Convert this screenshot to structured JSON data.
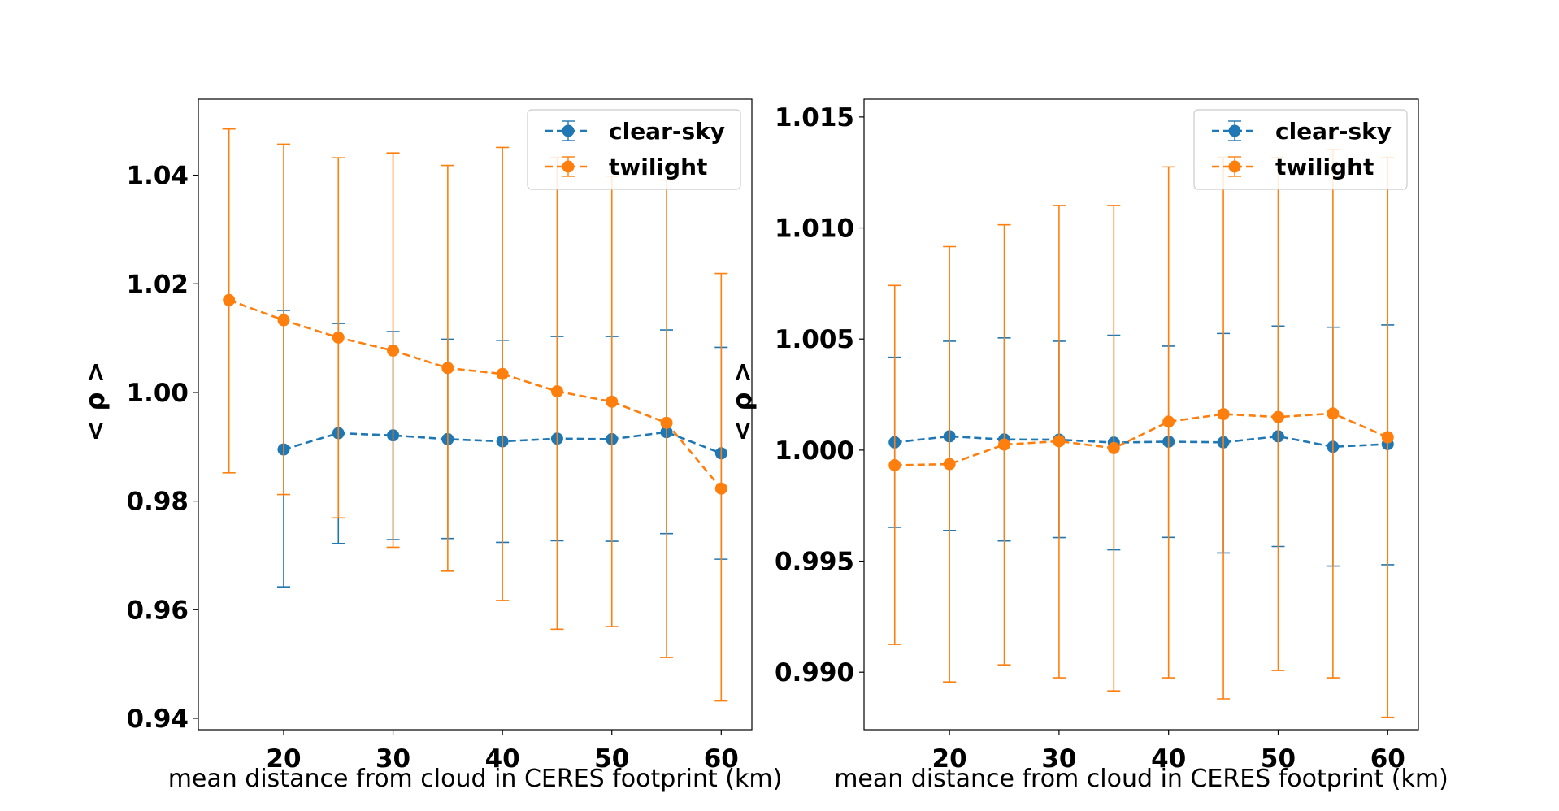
{
  "colors": {
    "clear_sky": "#1f77b4",
    "twilight": "#ff7f0e",
    "frame": "#000000",
    "background": "#ffffff"
  },
  "chart_data": [
    {
      "type": "line",
      "error_bars": true,
      "title": "",
      "xlabel": "mean distance from cloud in CERES footprint (km)",
      "ylabel": "< ρ >",
      "xlim": [
        12.2,
        62.8
      ],
      "ylim": [
        0.9379,
        1.054
      ],
      "xticks": [
        20,
        30,
        40,
        50,
        60
      ],
      "xtick_labels": [
        "20",
        "30",
        "40",
        "50",
        "60"
      ],
      "yticks": [
        0.94,
        0.96,
        0.98,
        1.0,
        1.02,
        1.04
      ],
      "ytick_labels": [
        "0.94",
        "0.96",
        "0.98",
        "1.00",
        "1.02",
        "1.04"
      ],
      "grid": false,
      "legend_position": "upper right",
      "series": [
        {
          "name": "clear-sky",
          "color": "#1f77b4",
          "linestyle": "dashed",
          "marker": "circle",
          "x": [
            20,
            25,
            30,
            35,
            40,
            45,
            50,
            55,
            60
          ],
          "y": [
            0.9895,
            0.9925,
            0.9921,
            0.9914,
            0.991,
            0.9915,
            0.9914,
            0.9927,
            0.9888
          ],
          "err_low": [
            0.9642,
            0.9722,
            0.9729,
            0.9731,
            0.9724,
            0.9727,
            0.9726,
            0.974,
            0.9693
          ],
          "err_high": [
            1.0151,
            1.0127,
            1.0112,
            1.0098,
            1.0096,
            1.0103,
            1.0103,
            1.0115,
            1.0083
          ]
        },
        {
          "name": "twilight",
          "color": "#ff7f0e",
          "linestyle": "dashed",
          "marker": "circle",
          "x": [
            15,
            20,
            25,
            30,
            35,
            40,
            45,
            50,
            55,
            60
          ],
          "y": [
            1.017,
            1.0133,
            1.0101,
            1.0077,
            1.0045,
            1.0034,
            1.0002,
            0.9983,
            0.9944,
            0.9823
          ],
          "err_low": [
            0.9852,
            0.9812,
            0.9769,
            0.9715,
            0.9671,
            0.9617,
            0.9564,
            0.9569,
            0.9512,
            0.9432
          ],
          "err_high": [
            1.0485,
            1.0457,
            1.0432,
            1.0441,
            1.0418,
            1.0451,
            1.0433,
            1.0398,
            1.0391,
            1.0219
          ]
        }
      ]
    },
    {
      "type": "line",
      "error_bars": true,
      "title": "",
      "xlabel": "mean distance from cloud in CERES footprint (km)",
      "ylabel": "< ρ >",
      "xlim": [
        12.2,
        62.8
      ],
      "ylim": [
        0.98741,
        1.0158
      ],
      "xticks": [
        20,
        30,
        40,
        50,
        60
      ],
      "xtick_labels": [
        "20",
        "30",
        "40",
        "50",
        "60"
      ],
      "yticks": [
        0.99,
        0.995,
        1.0,
        1.005,
        1.01,
        1.015
      ],
      "ytick_labels": [
        "0.990",
        "0.995",
        "1.000",
        "1.005",
        "1.010",
        "1.015"
      ],
      "grid": false,
      "legend_position": "upper right",
      "series": [
        {
          "name": "clear-sky",
          "color": "#1f77b4",
          "linestyle": "dashed",
          "marker": "circle",
          "x": [
            15,
            20,
            25,
            30,
            35,
            40,
            45,
            50,
            55,
            60
          ],
          "y": [
            1.00035,
            1.00062,
            1.00048,
            1.00047,
            1.00034,
            1.00038,
            1.00035,
            1.00062,
            1.00015,
            1.00027
          ],
          "err_low": [
            0.99652,
            0.99638,
            0.99591,
            0.99606,
            0.99551,
            0.99607,
            0.99537,
            0.99566,
            0.99478,
            0.99484
          ],
          "err_high": [
            1.00418,
            1.0049,
            1.00505,
            1.0049,
            1.00517,
            1.00468,
            1.00525,
            1.00558,
            1.00553,
            1.00563
          ]
        },
        {
          "name": "twilight",
          "color": "#ff7f0e",
          "linestyle": "dashed",
          "marker": "circle",
          "x": [
            15,
            20,
            25,
            30,
            35,
            40,
            45,
            50,
            55,
            60
          ],
          "y": [
            0.99932,
            0.99937,
            1.00025,
            1.0004,
            1.00009,
            1.00128,
            1.00162,
            1.00149,
            1.00165,
            1.00058
          ],
          "err_low": [
            0.99125,
            0.98956,
            0.99033,
            0.98975,
            0.98916,
            0.98975,
            0.9888,
            0.99008,
            0.98975,
            0.98797
          ],
          "err_high": [
            1.00741,
            1.00916,
            1.01014,
            1.01101,
            1.01101,
            1.01275,
            1.01318,
            1.01318,
            1.01354,
            1.01318
          ]
        }
      ]
    }
  ]
}
